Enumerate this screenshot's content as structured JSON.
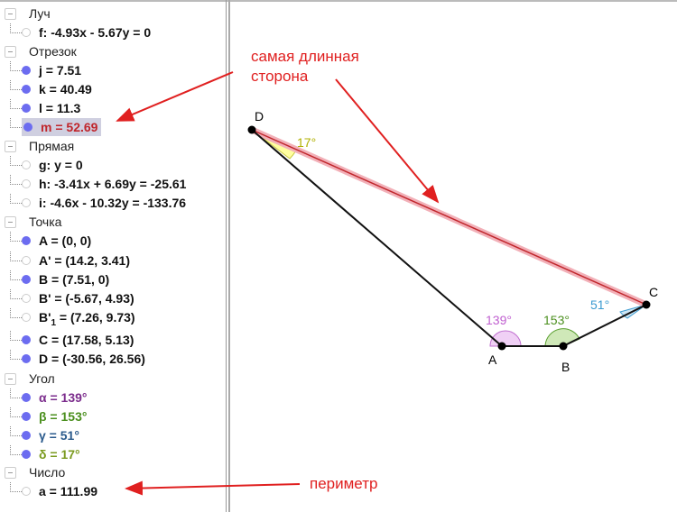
{
  "algebra": {
    "categories": {
      "ray": "Луч",
      "segment": "Отрезок",
      "line": "Прямая",
      "point": "Точка",
      "angle": "Угол",
      "number": "Число"
    },
    "items": {
      "f": "f: -4.93x - 5.67y = 0",
      "j": "j = 7.51",
      "k": "k = 40.49",
      "l": "l = 11.3",
      "m": "m = 52.69",
      "g": "g: y = 0",
      "h": "h: -3.41x + 6.69y = -25.61",
      "i": "i: -4.6x - 10.32y = -133.76",
      "A": "A = (0, 0)",
      "A1": "A' = (14.2, 3.41)",
      "B": "B = (7.51, 0)",
      "B1": "B' = (-5.67, 4.93)",
      "B2_pre": "B'",
      "B2_sub": "1",
      "B2_post": " = (7.26, 9.73)",
      "C": "C = (17.58, 5.13)",
      "D": "D = (-30.56, 26.56)",
      "alpha": "α = 139°",
      "beta": "β = 153°",
      "gamma": "γ = 51°",
      "delta": "δ = 17°",
      "a": "a = 111.99"
    }
  },
  "graphics": {
    "points": {
      "A": "A",
      "B": "B",
      "C": "C",
      "D": "D"
    },
    "angles": {
      "alpha": "139°",
      "beta": "153°",
      "gamma": "51°",
      "delta": "17°"
    },
    "annotations": {
      "longest_line1": "самая длинная",
      "longest_line2": "сторона",
      "perimeter": "периметр"
    }
  },
  "colors": {
    "alpha": "#7b2c8c",
    "beta": "#4b8f1e",
    "gamma": "#2a5a8c",
    "delta": "#7a9a1e",
    "highlight": "#c0262c",
    "arrow": "#e02020"
  }
}
